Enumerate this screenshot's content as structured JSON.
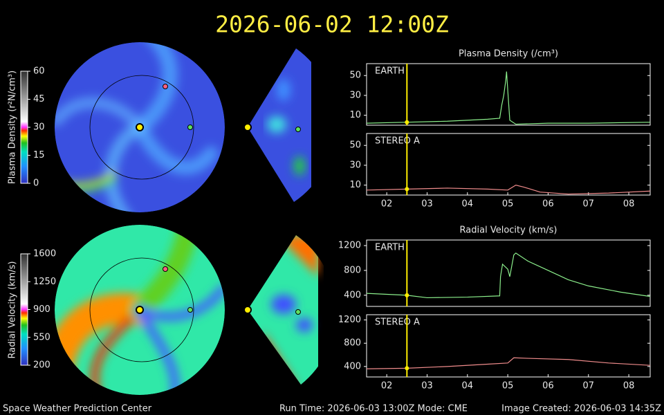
{
  "header": {
    "title": "2026-06-02 12:00Z"
  },
  "footer": {
    "left": "Space Weather Prediction Center",
    "center": "Run Time: 2026-06-03 13:00Z  Mode: CME",
    "right": "Image Created: 2026-06-03 14:35Z"
  },
  "colorbars": [
    {
      "label": "Plasma Density (r²N/cm³)",
      "ylim": [
        0,
        60
      ],
      "ticks": [
        0,
        15,
        30,
        45,
        60
      ]
    },
    {
      "label": "Radial Velocity (km/s)",
      "ylim": [
        200,
        1600
      ],
      "ticks": [
        200,
        550,
        900,
        1250,
        1600
      ]
    }
  ],
  "chart_data": [
    {
      "type": "line",
      "title": "Plasma Density (/cm³)",
      "xlim": [
        1.5,
        8.53
      ],
      "ylim": [
        0,
        62
      ],
      "yticks": [
        10,
        30,
        50
      ],
      "marker_x": 2.5,
      "x": [
        1.5,
        2.5,
        3.5,
        4.5,
        4.8,
        4.85,
        4.9,
        4.95,
        4.97,
        5.0,
        5.05,
        5.2,
        6,
        7,
        8.53
      ],
      "series": [
        {
          "name": "EARTH",
          "color": "#8cf08c",
          "values": [
            2,
            3,
            4,
            6,
            7,
            20,
            30,
            45,
            54,
            35,
            5,
            1,
            2,
            2,
            3
          ]
        }
      ]
    },
    {
      "type": "line",
      "xlim": [
        1.5,
        8.53
      ],
      "ylim": [
        0,
        62
      ],
      "yticks": [
        10,
        30,
        50
      ],
      "marker_x": 2.5,
      "xticks": [
        {
          "value": 2,
          "label": "02"
        },
        {
          "value": 3,
          "label": "03"
        },
        {
          "value": 4,
          "label": "04"
        },
        {
          "value": 5,
          "label": "05"
        },
        {
          "value": 6,
          "label": "06"
        },
        {
          "value": 7,
          "label": "07"
        },
        {
          "value": 8,
          "label": "08"
        }
      ],
      "x": [
        1.5,
        2.5,
        3.5,
        4.5,
        5.0,
        5.2,
        5.4,
        5.8,
        6.5,
        7.5,
        8.53
      ],
      "series": [
        {
          "name": "STEREO A",
          "color": "#f08c8c",
          "values": [
            5,
            6,
            7,
            6,
            5,
            10,
            8,
            3,
            1,
            2,
            4
          ]
        }
      ]
    },
    {
      "type": "line",
      "title": "Radial Velocity (km/s)",
      "xlim": [
        1.5,
        8.53
      ],
      "ylim": [
        220,
        1290
      ],
      "yticks": [
        400,
        800,
        1200
      ],
      "marker_x": 2.5,
      "x": [
        1.5,
        2.5,
        3,
        4,
        4.8,
        4.82,
        4.87,
        5.0,
        5.05,
        5.15,
        5.2,
        5.5,
        6,
        6.5,
        7,
        7.8,
        8.53
      ],
      "series": [
        {
          "name": "EARTH",
          "color": "#8cf08c",
          "values": [
            430,
            400,
            360,
            370,
            390,
            700,
            900,
            820,
            700,
            1050,
            1080,
            950,
            800,
            650,
            550,
            450,
            380
          ]
        }
      ]
    },
    {
      "type": "line",
      "xlim": [
        1.5,
        8.53
      ],
      "ylim": [
        220,
        1290
      ],
      "yticks": [
        400,
        800,
        1200
      ],
      "marker_x": 2.5,
      "xticks": [
        {
          "value": 2,
          "label": "02"
        },
        {
          "value": 3,
          "label": "03"
        },
        {
          "value": 4,
          "label": "04"
        },
        {
          "value": 5,
          "label": "05"
        },
        {
          "value": 6,
          "label": "06"
        },
        {
          "value": 7,
          "label": "07"
        },
        {
          "value": 8,
          "label": "08"
        }
      ],
      "x": [
        1.5,
        2.5,
        3.5,
        4.5,
        5.0,
        5.15,
        5.5,
        6.5,
        7.5,
        8.53
      ],
      "series": [
        {
          "name": "STEREO A",
          "color": "#f08c8c",
          "values": [
            360,
            370,
            400,
            440,
            460,
            550,
            540,
            520,
            460,
            420
          ]
        }
      ]
    }
  ]
}
